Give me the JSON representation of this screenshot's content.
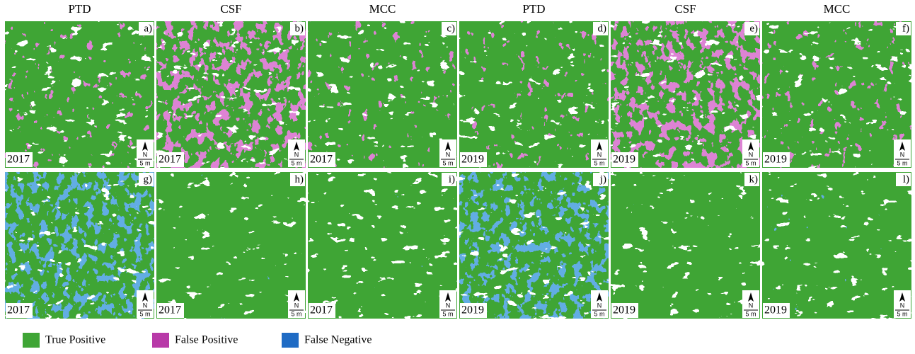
{
  "columns": [
    "PTD",
    "CSF",
    "MCC",
    "PTD",
    "CSF",
    "MCC"
  ],
  "panels": [
    {
      "label": "a)",
      "year": "2017"
    },
    {
      "label": "b)",
      "year": "2017"
    },
    {
      "label": "c)",
      "year": "2017"
    },
    {
      "label": "d)",
      "year": "2019"
    },
    {
      "label": "e)",
      "year": "2019"
    },
    {
      "label": "f)",
      "year": "2019"
    },
    {
      "label": "g)",
      "year": "2017"
    },
    {
      "label": "h)",
      "year": "2017"
    },
    {
      "label": "i)",
      "year": "2017"
    },
    {
      "label": "j)",
      "year": "2019"
    },
    {
      "label": "k)",
      "year": "2019"
    },
    {
      "label": "l)",
      "year": "2019"
    }
  ],
  "north": "N",
  "scale": "5 m",
  "legend": [
    {
      "label": "True Positive",
      "color": "#3fa535"
    },
    {
      "label": "False Positive",
      "color": "#b83aa8"
    },
    {
      "label": "False Negative",
      "color": "#1f6bc4"
    }
  ]
}
